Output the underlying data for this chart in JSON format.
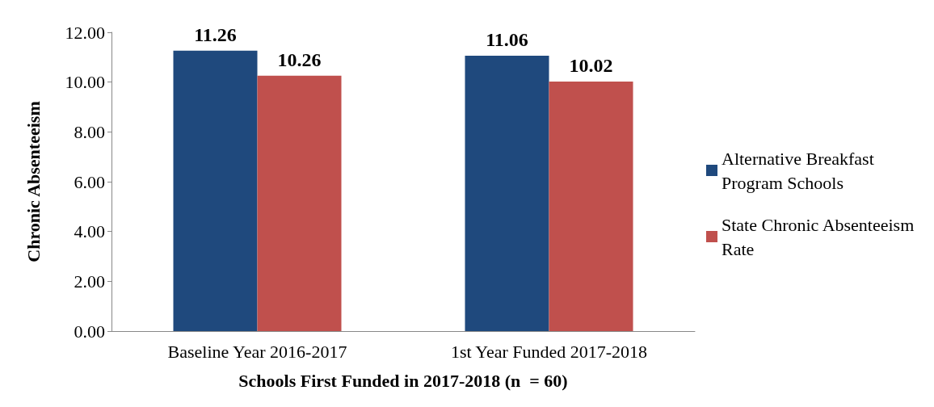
{
  "chart_data": {
    "type": "bar",
    "xlabel": "Schools First Funded in 2017-2018 (n  = 60)",
    "ylabel": "Chronic Absenteeism",
    "categories": [
      "Baseline Year 2016-2017",
      "1st Year Funded 2017-2018"
    ],
    "series": [
      {
        "name": "Alternative Breakfast Program Schools",
        "color": "#1f497d",
        "values": [
          11.26,
          11.06
        ]
      },
      {
        "name": "State Chronic Absenteeism Rate",
        "color": "#c0504d",
        "values": [
          10.26,
          10.02
        ]
      }
    ],
    "ylim": [
      0,
      12
    ],
    "yticks": [
      {
        "value": 0,
        "label": "0.00"
      },
      {
        "value": 2,
        "label": "2.00"
      },
      {
        "value": 4,
        "label": "4.00"
      },
      {
        "value": 6,
        "label": "6.00"
      },
      {
        "value": 8,
        "label": "8.00"
      },
      {
        "value": 10,
        "label": "10.00"
      },
      {
        "value": 12,
        "label": "12.00"
      }
    ],
    "data_labels": true,
    "legend": "right",
    "grid": false
  }
}
